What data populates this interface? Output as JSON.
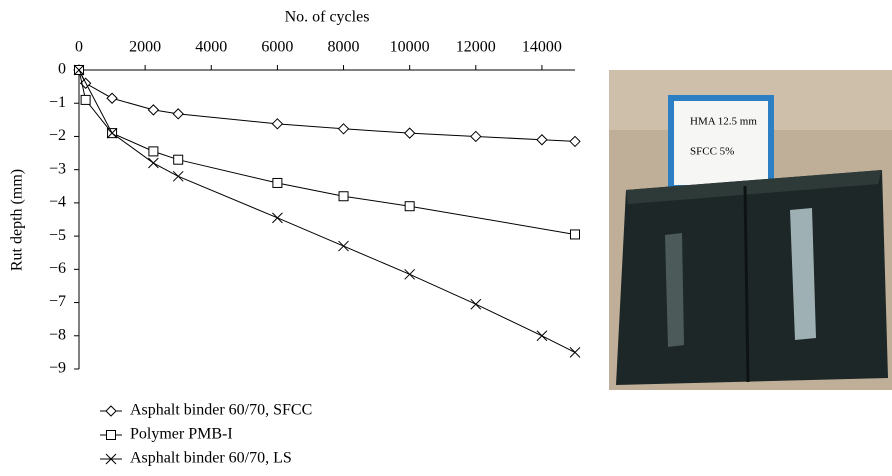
{
  "chart_data": {
    "type": "line",
    "x_title": "No. of cycles",
    "y_title": "Rut depth (mm)",
    "xlim": [
      0,
      15000
    ],
    "xticks": [
      0,
      2000,
      4000,
      6000,
      8000,
      10000,
      12000,
      14000
    ],
    "ylim": [
      -9,
      0
    ],
    "yticks": [
      0,
      {
        "value": -1,
        "label": "−1"
      },
      {
        "value": -2,
        "label": "−2"
      },
      {
        "value": -3,
        "label": "−3"
      },
      {
        "value": -4,
        "label": "−4"
      },
      {
        "value": -5,
        "label": "−5"
      },
      {
        "value": -6,
        "label": "−6"
      },
      {
        "value": -7,
        "label": "−7"
      },
      {
        "value": -8,
        "label": "−8"
      },
      {
        "value": -9,
        "label": "−9"
      }
    ],
    "x_axis_position": "top",
    "series": [
      {
        "name": "Asphalt binder 60/70, SFCC",
        "color": "#000000",
        "marker": "diamond",
        "x": [
          0,
          200,
          1000,
          2250,
          3000,
          6000,
          8000,
          10000,
          12000,
          14000,
          15000
        ],
        "values": [
          0,
          -0.4,
          -0.85,
          -1.2,
          -1.32,
          -1.62,
          -1.77,
          -1.9,
          -2.0,
          -2.1,
          -2.15
        ]
      },
      {
        "name": "Polymer PMB-I",
        "color": "#000000",
        "marker": "square",
        "x": [
          0,
          200,
          1000,
          2250,
          3000,
          6000,
          8000,
          10000,
          15000
        ],
        "values": [
          0,
          -0.9,
          -1.9,
          -2.45,
          -2.7,
          -3.4,
          -3.8,
          -4.1,
          -4.95
        ]
      },
      {
        "name": "Asphalt binder 60/70, LS",
        "color": "#000000",
        "marker": "x",
        "x": [
          0,
          1000,
          2250,
          3000,
          6000,
          8000,
          10000,
          12000,
          14000,
          15000
        ],
        "values": [
          0,
          -1.9,
          -2.8,
          -3.2,
          -4.45,
          -5.3,
          -6.15,
          -7.05,
          -8.0,
          -8.5
        ]
      }
    ]
  },
  "photo": {
    "sign_lines": [
      "HMA 12.5 mm",
      "SFCC 5%"
    ]
  }
}
